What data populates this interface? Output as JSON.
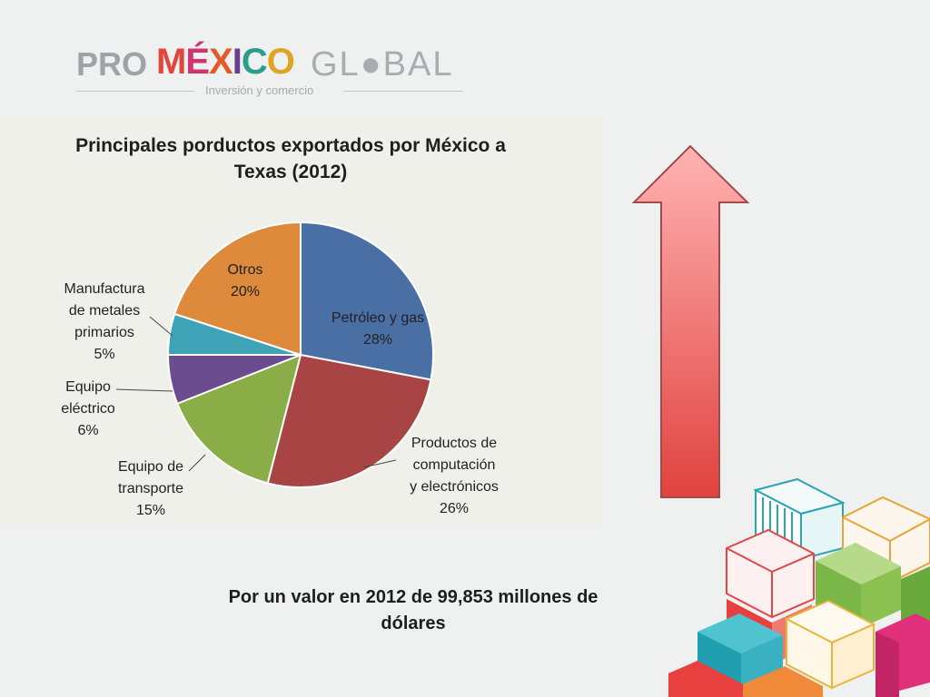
{
  "logo": {
    "pro": "PRO",
    "mexico_letters": [
      "M",
      "É",
      "X",
      "I",
      "C",
      "O"
    ],
    "mexico_colors": [
      "#e2453c",
      "#d2336f",
      "#e25a2b",
      "#6b3d8f",
      "#2a9e8c",
      "#e0a322"
    ],
    "global": "GL●BAL",
    "tagline": "Inversión y comercio"
  },
  "chart_data": {
    "type": "pie",
    "title": "Principales porductos exportados por México a Texas (2012)",
    "title_lines": [
      "Principales porductos exportados por México a",
      "Texas (2012)"
    ],
    "slices": [
      {
        "label_lines": [
          "Petróleo y gas"
        ],
        "value": 28,
        "value_label": "28%",
        "color": "#4a6fa5"
      },
      {
        "label_lines": [
          "Productos de",
          "computación",
          "y electrónicos"
        ],
        "value": 26,
        "value_label": "26%",
        "color": "#a94444"
      },
      {
        "label_lines": [
          "Equipo de",
          "transporte"
        ],
        "value": 15,
        "value_label": "15%",
        "color": "#8aad48"
      },
      {
        "label_lines": [
          "Equipo",
          "eléctrico"
        ],
        "value": 6,
        "value_label": "6%",
        "color": "#6b4d8f"
      },
      {
        "label_lines": [
          "Manufactura",
          "de metales",
          "primarios"
        ],
        "value": 5,
        "value_label": "5%",
        "color": "#3fa3b8"
      },
      {
        "label_lines": [
          "Otros"
        ],
        "value": 20,
        "value_label": "20%",
        "color": "#dd8a3c"
      }
    ]
  },
  "caption": {
    "line1": "Por un valor en 2012 de 99,853 millones de",
    "line2": "dólares"
  }
}
